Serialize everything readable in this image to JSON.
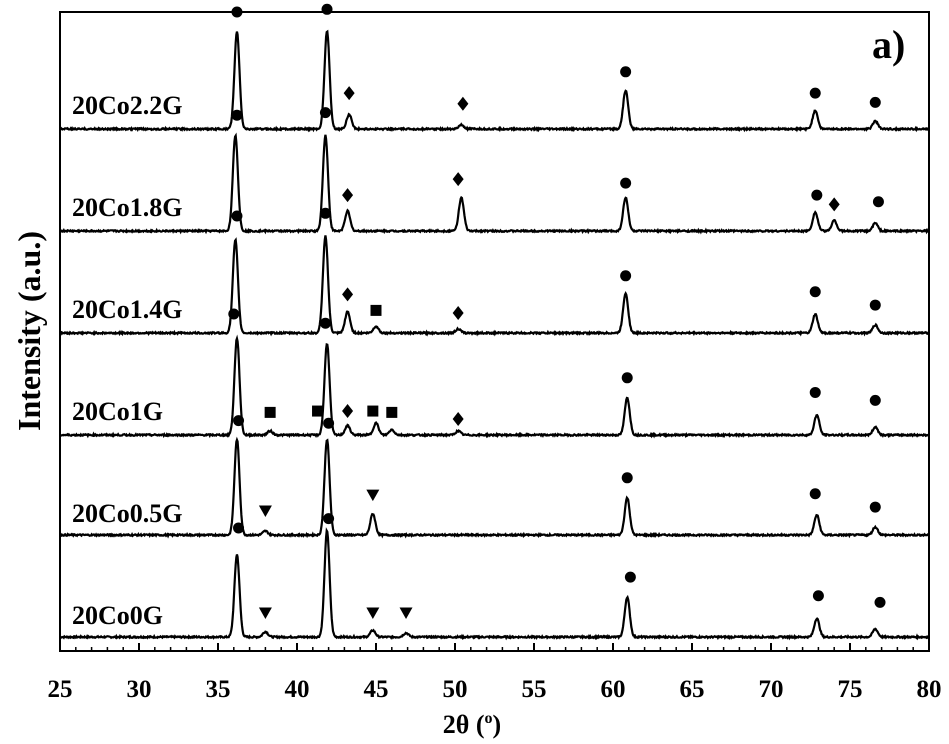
{
  "chart_data": {
    "type": "line",
    "panel_label": "a)",
    "xlabel_main": "2θ (",
    "xlabel_unit": "o",
    "xlabel_close": ")",
    "ylabel": "Intensity (a.u.)",
    "xlim": [
      25,
      80
    ],
    "xticks": [
      25,
      30,
      35,
      40,
      45,
      50,
      55,
      60,
      65,
      70,
      75,
      80
    ],
    "ylim": [
      0,
      6
    ],
    "grid": false,
    "legend": "none",
    "line_color": "#000000",
    "marker_legend": {
      "circle": "●",
      "diamond": "♦",
      "square": "■",
      "triangle": "▼"
    },
    "series": [
      {
        "name": "20Co0G",
        "offset": 0,
        "peaks": [
          [
            36.2,
            0.62
          ],
          [
            38.0,
            0.04
          ],
          [
            41.9,
            0.8
          ],
          [
            44.8,
            0.05
          ],
          [
            46.9,
            0.03
          ],
          [
            60.9,
            0.3
          ],
          [
            72.9,
            0.14
          ],
          [
            76.6,
            0.06
          ]
        ],
        "markers": [
          [
            "circle",
            36.3,
            0.82
          ],
          [
            "triangle",
            38.0,
            0.18
          ],
          [
            "circle",
            42.0,
            0.89
          ],
          [
            "triangle",
            44.8,
            0.18
          ],
          [
            "triangle",
            46.9,
            0.18
          ],
          [
            "circle",
            61.1,
            0.45
          ],
          [
            "circle",
            73.0,
            0.31
          ],
          [
            "circle",
            76.9,
            0.26
          ]
        ]
      },
      {
        "name": "20Co0.5G",
        "offset": 1,
        "peaks": [
          [
            36.2,
            0.72
          ],
          [
            38.0,
            0.03
          ],
          [
            41.9,
            0.72
          ],
          [
            44.8,
            0.16
          ],
          [
            60.9,
            0.28
          ],
          [
            72.9,
            0.15
          ],
          [
            76.6,
            0.06
          ]
        ],
        "markers": [
          [
            "circle",
            36.3,
            0.86
          ],
          [
            "triangle",
            38.0,
            0.18
          ],
          [
            "circle",
            42.0,
            0.84
          ],
          [
            "triangle",
            44.8,
            0.3
          ],
          [
            "circle",
            60.9,
            0.43
          ],
          [
            "circle",
            72.8,
            0.31
          ],
          [
            "circle",
            76.6,
            0.21
          ]
        ]
      },
      {
        "name": "20Co1G",
        "offset": 2,
        "peaks": [
          [
            36.2,
            0.73
          ],
          [
            38.3,
            0.03
          ],
          [
            41.9,
            0.69
          ],
          [
            43.2,
            0.07
          ],
          [
            45.0,
            0.09
          ],
          [
            46.0,
            0.04
          ],
          [
            50.2,
            0.03
          ],
          [
            60.9,
            0.28
          ],
          [
            72.9,
            0.15
          ],
          [
            76.6,
            0.06
          ]
        ],
        "markers": [
          [
            "circle",
            36.0,
            0.91
          ],
          [
            "square",
            38.3,
            0.17
          ],
          [
            "square",
            41.3,
            0.18
          ],
          [
            "circle",
            41.8,
            0.84
          ],
          [
            "diamond",
            43.2,
            0.18
          ],
          [
            "square",
            44.8,
            0.18
          ],
          [
            "square",
            46.0,
            0.17
          ],
          [
            "diamond",
            50.2,
            0.12
          ],
          [
            "circle",
            60.9,
            0.43
          ],
          [
            "circle",
            72.8,
            0.32
          ],
          [
            "circle",
            76.6,
            0.26
          ]
        ]
      },
      {
        "name": "20Co1.4G",
        "offset": 3,
        "peaks": [
          [
            36.1,
            0.7
          ],
          [
            41.8,
            0.73
          ],
          [
            43.2,
            0.16
          ],
          [
            45.0,
            0.05
          ],
          [
            50.2,
            0.03
          ],
          [
            60.8,
            0.3
          ],
          [
            72.8,
            0.14
          ],
          [
            76.6,
            0.06
          ]
        ],
        "markers": [
          [
            "circle",
            36.2,
            0.88
          ],
          [
            "circle",
            41.8,
            0.9
          ],
          [
            "diamond",
            43.2,
            0.29
          ],
          [
            "square",
            45.0,
            0.17
          ],
          [
            "diamond",
            50.2,
            0.15
          ],
          [
            "circle",
            60.8,
            0.43
          ],
          [
            "circle",
            72.8,
            0.31
          ],
          [
            "circle",
            76.6,
            0.21
          ]
        ]
      },
      {
        "name": "20Co1.8G",
        "offset": 4,
        "peaks": [
          [
            36.1,
            0.72
          ],
          [
            41.8,
            0.72
          ],
          [
            43.2,
            0.15
          ],
          [
            50.4,
            0.25
          ],
          [
            60.8,
            0.25
          ],
          [
            72.8,
            0.14
          ],
          [
            74.0,
            0.08
          ],
          [
            76.6,
            0.06
          ]
        ],
        "markers": [
          [
            "circle",
            36.2,
            0.87
          ],
          [
            "circle",
            41.8,
            0.89
          ],
          [
            "diamond",
            43.2,
            0.27
          ],
          [
            "diamond",
            50.2,
            0.39
          ],
          [
            "circle",
            60.8,
            0.36
          ],
          [
            "circle",
            72.9,
            0.27
          ],
          [
            "diamond",
            74.0,
            0.2
          ],
          [
            "circle",
            76.8,
            0.22
          ]
        ]
      },
      {
        "name": "20Co2.2G",
        "offset": 5,
        "peaks": [
          [
            36.2,
            0.73
          ],
          [
            41.9,
            0.74
          ],
          [
            43.3,
            0.11
          ],
          [
            50.4,
            0.03
          ],
          [
            60.8,
            0.29
          ],
          [
            72.8,
            0.14
          ],
          [
            76.6,
            0.06
          ]
        ],
        "markers": [
          [
            "circle",
            36.2,
            0.88
          ],
          [
            "circle",
            41.9,
            0.9
          ],
          [
            "diamond",
            43.3,
            0.27
          ],
          [
            "diamond",
            50.5,
            0.19
          ],
          [
            "circle",
            60.8,
            0.43
          ],
          [
            "circle",
            72.8,
            0.27
          ],
          [
            "circle",
            76.6,
            0.2
          ]
        ]
      }
    ]
  }
}
